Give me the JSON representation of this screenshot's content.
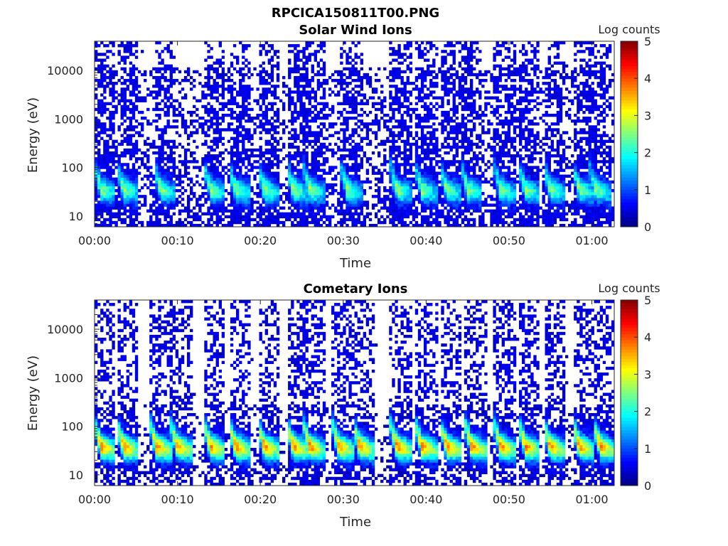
{
  "figure": {
    "title": "RPCICA150811T00.PNG"
  },
  "chart_data": [
    {
      "type": "heatmap",
      "title": "Solar Wind Ions",
      "xlabel": "Time",
      "ylabel": "Energy (eV)",
      "x_tick_labels": [
        "00:00",
        "00:10",
        "00:20",
        "00:30",
        "00:40",
        "00:50",
        "01:00"
      ],
      "x_tick_minutes": [
        0,
        10,
        20,
        30,
        40,
        50,
        60
      ],
      "xlim_minutes": [
        0,
        62.7
      ],
      "y_scale": "log",
      "y_tick_labels": [
        "10",
        "100",
        "1000",
        "10000"
      ],
      "y_tick_values": [
        10,
        100,
        1000,
        10000
      ],
      "ylim": [
        6,
        40000
      ],
      "colorbar": {
        "label": "Log counts",
        "ticks": [
          "0",
          "1",
          "2",
          "3",
          "4",
          "5"
        ],
        "range": [
          0,
          5
        ],
        "colormap": "jet"
      },
      "noise": {
        "background_max_energy": 12000,
        "background_level": 0.3
      },
      "bursts_minutes": [
        0.8,
        3.5,
        8.0,
        14.0,
        17.0,
        20.5,
        24.0,
        26.0,
        30.5,
        36.5,
        39.5,
        42.5,
        45.0,
        49.0,
        52.0,
        55.0,
        58.5,
        60.5
      ],
      "burst_peak_energy": 35,
      "burst_level": 2.4
    },
    {
      "type": "heatmap",
      "title": "Cometary Ions",
      "xlabel": "Time",
      "ylabel": "Energy (eV)",
      "x_tick_labels": [
        "00:00",
        "00:10",
        "00:20",
        "00:30",
        "00:40",
        "00:50",
        "01:00"
      ],
      "x_tick_minutes": [
        0,
        10,
        20,
        30,
        40,
        50,
        60
      ],
      "xlim_minutes": [
        0,
        62.7
      ],
      "y_scale": "log",
      "y_tick_labels": [
        "10",
        "100",
        "1000",
        "10000"
      ],
      "y_tick_values": [
        10,
        100,
        1000,
        10000
      ],
      "ylim": [
        6,
        40000
      ],
      "colorbar": {
        "label": "Log counts",
        "ticks": [
          "0",
          "1",
          "2",
          "3",
          "4",
          "5"
        ],
        "range": [
          0,
          5
        ],
        "colormap": "jet"
      },
      "noise": {
        "background_max_energy": 300,
        "background_level": 0.15
      },
      "bursts_minutes": [
        0.8,
        3.5,
        7.5,
        10.0,
        14.0,
        17.0,
        20.5,
        24.0,
        26.0,
        29.5,
        32.0,
        36.5,
        39.5,
        42.5,
        45.5,
        49.0,
        52.0,
        55.0,
        58.5,
        61.0
      ],
      "burst_peak_energy": 38,
      "burst_level": 3.6
    }
  ]
}
